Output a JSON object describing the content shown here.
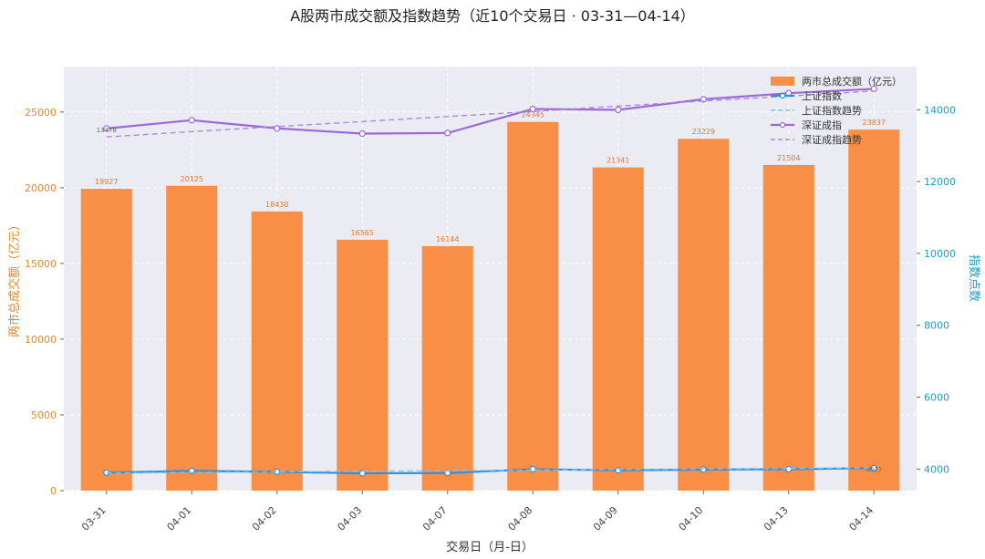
{
  "chart_data": {
    "type": "bar+line",
    "title": "A股两市成交额及指数趋势（近10个交易日 · 03-31—04-14）",
    "xlabel": "交易日（月-日）",
    "ylabel_left": "两市总成交额（亿元）",
    "ylabel_right": "指数点数",
    "categories": [
      "03-31",
      "04-01",
      "04-02",
      "04-03",
      "04-07",
      "04-08",
      "04-09",
      "04-10",
      "04-13",
      "04-14"
    ],
    "ylim_left": [
      0,
      28000
    ],
    "yticks_left": [
      0,
      5000,
      10000,
      15000,
      20000,
      25000
    ],
    "ylim_right": [
      3400,
      15200
    ],
    "yticks_right": [
      4000,
      6000,
      8000,
      10000,
      12000,
      14000
    ],
    "bars": {
      "name": "两市总成交额（亿元）",
      "values": [
        19927,
        20125,
        18430,
        16565,
        16144,
        24345,
        21341,
        23229,
        21504,
        23837
      ],
      "labels": [
        "19927",
        "20125",
        "18430",
        "16565",
        "16144",
        "24345",
        "21341",
        "23229",
        "21504",
        "23837"
      ]
    },
    "lines": [
      {
        "name": "上证指数",
        "axis": "right",
        "values": [
          3900,
          3948,
          3922,
          3880,
          3890,
          3995,
          3966,
          3986,
          3995,
          4027
        ],
        "labels": [
          "",
          "",
          "",
          "",
          "",
          "",
          "",
          "",
          "",
          "4027"
        ]
      },
      {
        "name": "上证指数趋势",
        "axis": "right",
        "dashed": true,
        "values": [
          3890,
          3906,
          3922,
          3937,
          3953,
          3969,
          3985,
          4001,
          4016,
          4032
        ]
      },
      {
        "name": "深证成指",
        "axis": "right",
        "values": [
          13478,
          13708,
          13480,
          13335,
          13350,
          14020,
          13995,
          14290,
          14460,
          14580
        ],
        "labels": [
          "13478",
          "",
          "",
          "",
          "",
          "",
          "",
          "",
          "",
          ""
        ]
      },
      {
        "name": "深证成指趋势",
        "axis": "right",
        "dashed": true,
        "values": [
          13240,
          13390,
          13530,
          13670,
          13810,
          13950,
          14100,
          14240,
          14380,
          14520
        ]
      }
    ],
    "legend_position": "top-right",
    "grid": true
  },
  "colors": {
    "bar": "#f98f47",
    "bar_label": "#e07a30",
    "left_axis": "#e08b30",
    "right_axis": "#1f9bc7",
    "sh_line": "#2d8fe0",
    "sh_trend": "#7ec2ee",
    "sz_line": "#9a6bd6",
    "sz_trend": "#a98bdc",
    "plot_bg": "#ebebf3",
    "grid": "#ffffff"
  }
}
